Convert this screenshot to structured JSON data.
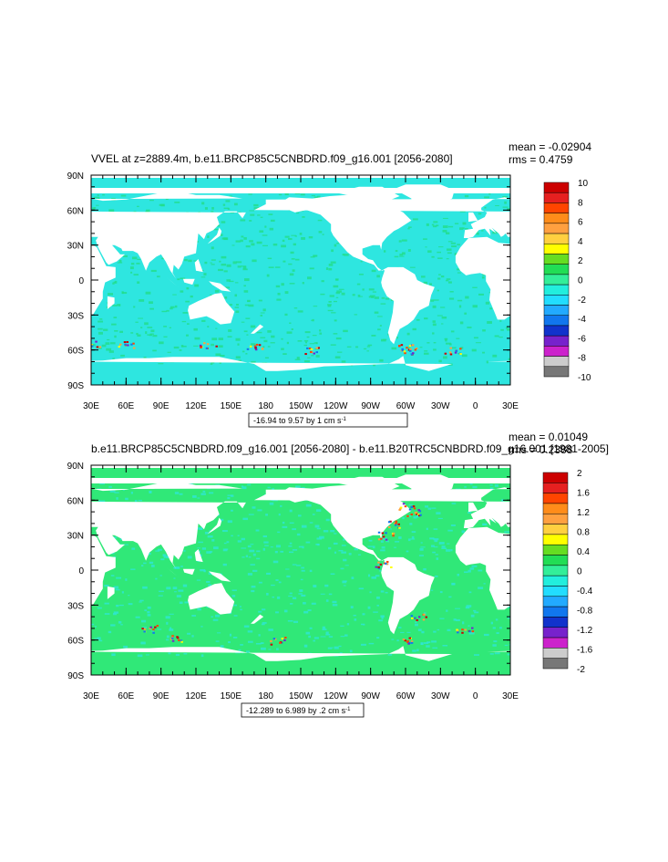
{
  "panels": [
    {
      "title": "VVEL at z=2889.4m, b.e11.BRCP85C5CNBDRD.f09_g16.001 [2056-2080]",
      "mean": "mean = -0.02904",
      "rms": "rms = 0.4759",
      "contour_info": "-16.94 to 9.57 by 1 cm s",
      "contour_info_exp": "-1",
      "lat_ticks": [
        "90N",
        "60N",
        "30N",
        "0",
        "30S",
        "60S",
        "90S"
      ],
      "lon_ticks": [
        "30E",
        "60E",
        "90E",
        "120E",
        "150E",
        "180",
        "150W",
        "120W",
        "90W",
        "60W",
        "30W",
        "0",
        "30E"
      ],
      "colorbar_labels": [
        "10",
        "8",
        "6",
        "4",
        "2",
        "0",
        "-2",
        "-4",
        "-6",
        "-8",
        "-10"
      ]
    },
    {
      "title": "b.e11.BRCP85C5CNBDRD.f09_g16.001 [2056-2080] - b.e11.B20TRC5CNBDRD.f09_g16.001 [1981-2005]",
      "mean": "mean = 0.01049",
      "rms": "rms = 0.2388",
      "contour_info": "-12.289 to 6.989 by .2 cm s",
      "contour_info_exp": "-1",
      "lat_ticks": [
        "90N",
        "60N",
        "30N",
        "0",
        "30S",
        "60S",
        "90S"
      ],
      "lon_ticks": [
        "30E",
        "60E",
        "90E",
        "120E",
        "150E",
        "180",
        "150W",
        "120W",
        "90W",
        "60W",
        "30W",
        "0",
        "30E"
      ],
      "colorbar_labels": [
        "2",
        "1.6",
        "1.2",
        "0.8",
        "0.4",
        "0",
        "-0.4",
        "-0.8",
        "-1.2",
        "-1.6",
        "-2"
      ]
    }
  ],
  "colors": {
    "colorbar": [
      "#cc0000",
      "#e62020",
      "#ff4500",
      "#ff8c1a",
      "#ffa040",
      "#ffd040",
      "#ffff00",
      "#66dd22",
      "#22dd55",
      "#33ee99",
      "#22eedd",
      "#22ddff",
      "#22aaff",
      "#1177ee",
      "#1133cc",
      "#7722cc",
      "#cc22cc",
      "#cccccc",
      "#777777"
    ],
    "ocean_main": "#2ee6e0",
    "ocean_diff": "#30e878",
    "land": "#ffffff"
  }
}
